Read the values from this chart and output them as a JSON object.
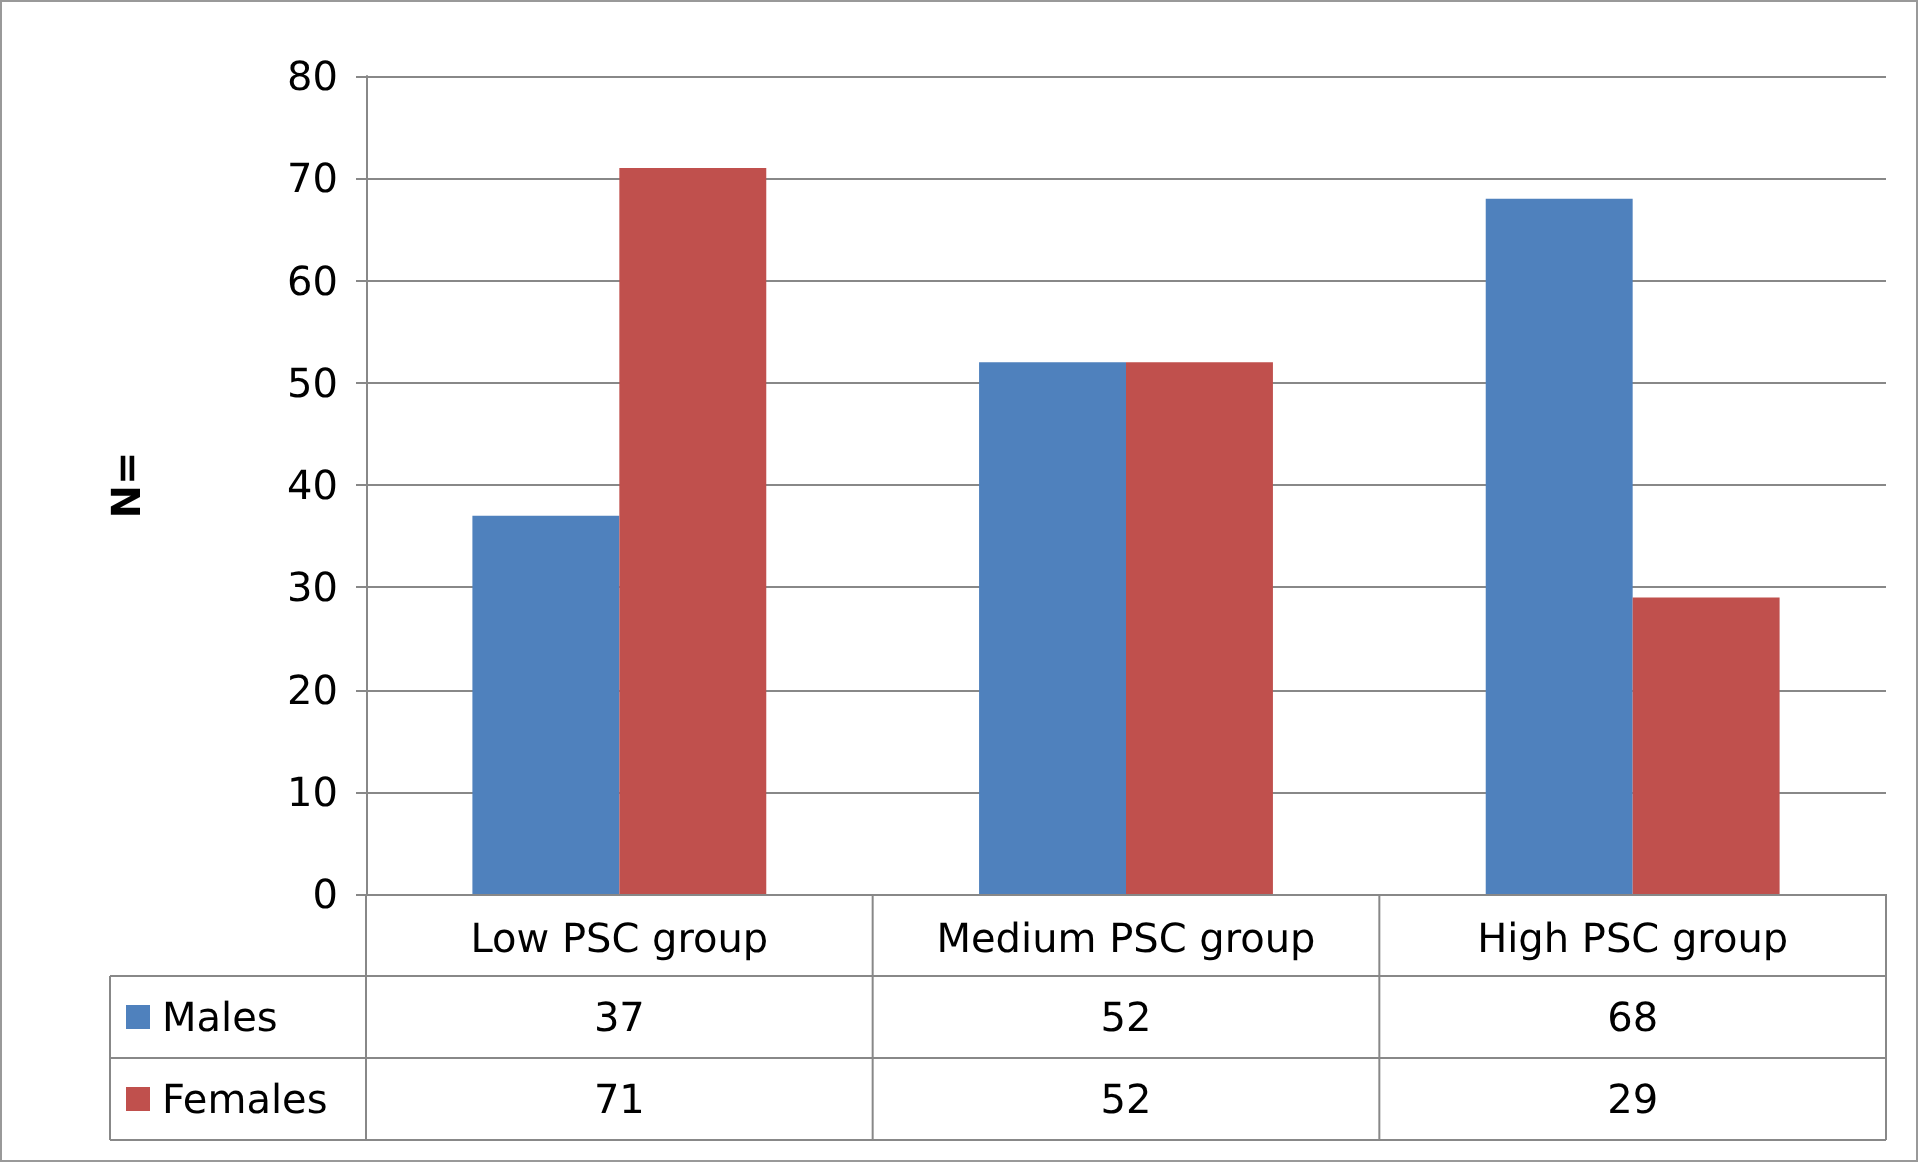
{
  "chart_data": {
    "type": "bar",
    "ylabel": "N=",
    "categories": [
      "Low PSC group",
      "Medium PSC group",
      "High PSC group"
    ],
    "series": [
      {
        "name": "Males",
        "color": "#4f81bd",
        "values": [
          37,
          52,
          68
        ]
      },
      {
        "name": "Females",
        "color": "#c0504d",
        "values": [
          71,
          52,
          29
        ]
      }
    ],
    "ylim": [
      0,
      80
    ],
    "yticks": [
      0,
      10,
      20,
      30,
      40,
      50,
      60,
      70,
      80
    ],
    "grid": "y",
    "legend": "bottom",
    "data_labels": true
  }
}
